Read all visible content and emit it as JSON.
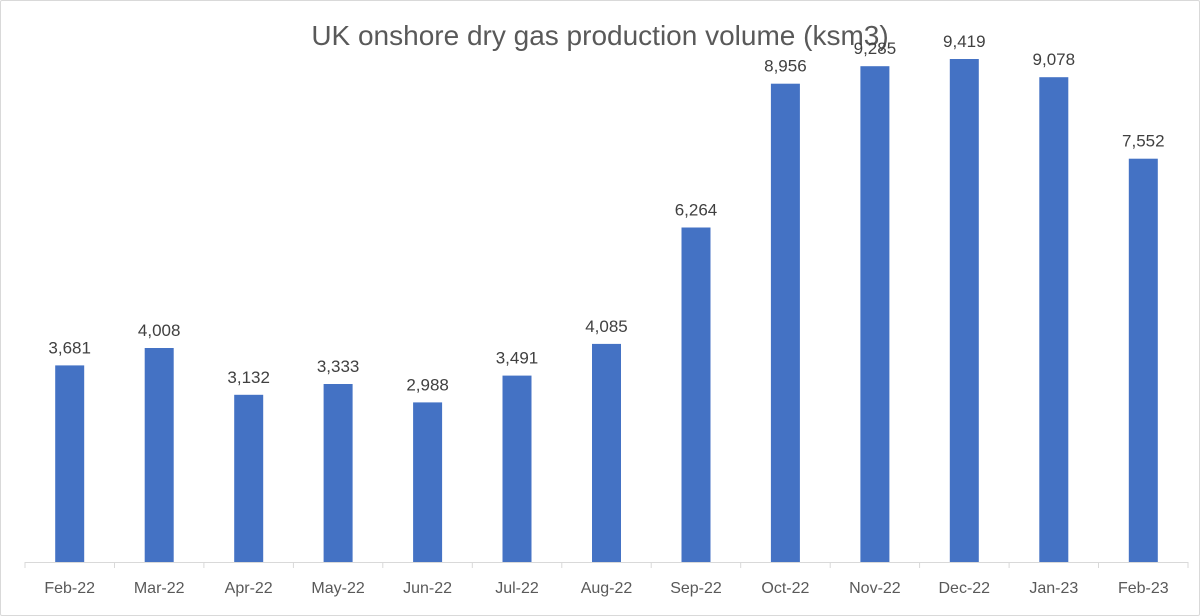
{
  "chart_data": {
    "type": "bar",
    "title": "UK onshore dry gas production volume (ksm3)",
    "xlabel": "",
    "ylabel": "",
    "categories": [
      "Feb-22",
      "Mar-22",
      "Apr-22",
      "May-22",
      "Jun-22",
      "Jul-22",
      "Aug-22",
      "Sep-22",
      "Oct-22",
      "Nov-22",
      "Dec-22",
      "Jan-23",
      "Feb-23"
    ],
    "values": [
      3681,
      4008,
      3132,
      3333,
      2988,
      3491,
      4085,
      6264,
      8956,
      9285,
      9419,
      9078,
      7552
    ],
    "data_labels": [
      "3,681",
      "4,008",
      "3,132",
      "3,333",
      "2,988",
      "3,491",
      "4,085",
      "6,264",
      "8,956",
      "9,285",
      "9,419",
      "9,078",
      "7,552"
    ],
    "ylim": [
      0,
      10000
    ],
    "grid": false,
    "legend": "none",
    "bar_color": "#4472c4"
  }
}
